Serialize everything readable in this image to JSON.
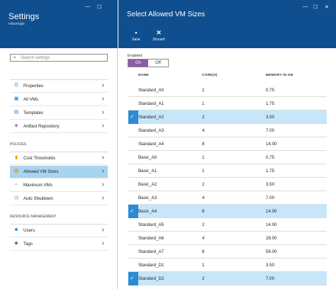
{
  "settings": {
    "title": "Settings",
    "subtitle": "returnigis",
    "search_placeholder": "Search settings",
    "group1": [
      {
        "label": "Properties",
        "icon": "bars-icon"
      },
      {
        "label": "All VMs",
        "icon": "vm-icon"
      },
      {
        "label": "Templates",
        "icon": "template-icon"
      },
      {
        "label": "Artifact Repository",
        "icon": "repository-icon"
      }
    ],
    "policies_label": "POLICIES",
    "policies": [
      {
        "label": "Cost Thresholds",
        "icon": "cost-icon"
      },
      {
        "label": "Allowed VM Sizes",
        "icon": "vm-sizes-icon",
        "selected": true
      },
      {
        "label": "Maximum VMs",
        "icon": "max-vms-icon"
      },
      {
        "label": "Auto Shutdown",
        "icon": "clock-icon"
      }
    ],
    "resource_label": "RESOURCE MANAGEMENT",
    "resource": [
      {
        "label": "Users",
        "icon": "users-icon"
      },
      {
        "label": "Tags",
        "icon": "tag-icon"
      }
    ],
    "window_controls": {
      "minimize": "—",
      "maximize": "☐"
    }
  },
  "blade": {
    "title": "Select Allowed VM Sizes",
    "save_label": "Save",
    "discard_label": "Discard",
    "window_controls": {
      "minimize": "—",
      "maximize": "☐",
      "close": "✕"
    },
    "enabled_label": "Enabled",
    "toggle_on": "On",
    "toggle_off": "Off",
    "columns": [
      "NAME",
      "CORE(S)",
      "MEMORY IN GB"
    ],
    "rows": [
      {
        "name": "Standard_A0",
        "cores": "1",
        "memory": "0.75",
        "selected": false
      },
      {
        "name": "Standard_A1",
        "cores": "1",
        "memory": "1.75",
        "selected": false
      },
      {
        "name": "Standard_A2",
        "cores": "2",
        "memory": "3.50",
        "selected": true
      },
      {
        "name": "Standard_A3",
        "cores": "4",
        "memory": "7.00",
        "selected": false
      },
      {
        "name": "Standard_A4",
        "cores": "8",
        "memory": "14.00",
        "selected": false
      },
      {
        "name": "Basic_A0",
        "cores": "1",
        "memory": "0.75",
        "selected": false
      },
      {
        "name": "Basic_A1",
        "cores": "1",
        "memory": "1.75",
        "selected": false
      },
      {
        "name": "Basic_A2",
        "cores": "2",
        "memory": "3.50",
        "selected": false
      },
      {
        "name": "Basic_A3",
        "cores": "4",
        "memory": "7.00",
        "selected": false
      },
      {
        "name": "Basic_A4",
        "cores": "8",
        "memory": "14.00",
        "selected": true
      },
      {
        "name": "Standard_A5",
        "cores": "2",
        "memory": "14.00",
        "selected": false
      },
      {
        "name": "Standard_A6",
        "cores": "4",
        "memory": "28.00",
        "selected": false
      },
      {
        "name": "Standard_A7",
        "cores": "8",
        "memory": "56.00",
        "selected": false
      },
      {
        "name": "Standard_D1",
        "cores": "1",
        "memory": "3.50",
        "selected": false
      },
      {
        "name": "Standard_D2",
        "cores": "2",
        "memory": "7.00",
        "selected": true
      }
    ]
  },
  "colors": {
    "header_blue": "#0f4f8f",
    "selected_row": "#c7e6f9",
    "check_blue": "#2a8ad4",
    "toggle_purple": "#8a5ba6",
    "nav_selected": "#a8d4f1"
  }
}
